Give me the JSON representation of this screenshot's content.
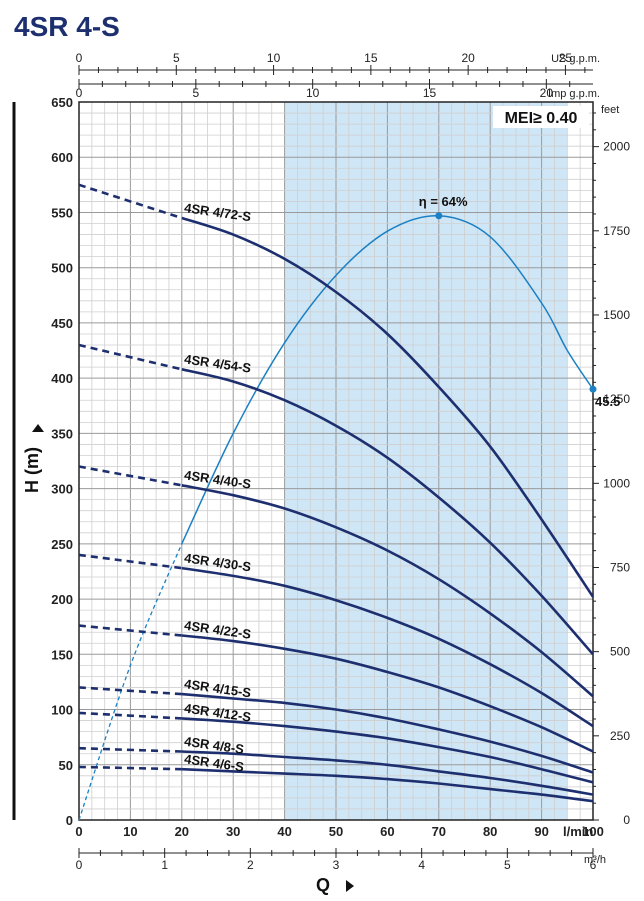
{
  "title": "4SR 4-S",
  "chart_data": {
    "type": "line",
    "x_axis": {
      "label": "Q",
      "unit": "l/min",
      "range": [
        0,
        100
      ],
      "ticks": [
        0,
        10,
        20,
        30,
        40,
        50,
        60,
        70,
        80,
        90,
        100
      ]
    },
    "y_axis": {
      "label": "H  (m)",
      "range": [
        0,
        650
      ],
      "ticks": [
        0,
        50,
        100,
        150,
        200,
        250,
        300,
        350,
        400,
        450,
        500,
        550,
        600,
        650
      ]
    },
    "secondary_axes": {
      "us_gpm": {
        "label": "US g.p.m.",
        "per_lmin": 0.26417,
        "ticks": [
          0,
          5,
          10,
          15,
          20,
          25
        ]
      },
      "imp_gpm": {
        "label": "Imp g.p.m.",
        "per_lmin": 0.21997,
        "ticks": [
          0,
          5,
          10,
          15,
          20
        ]
      },
      "m3h": {
        "label": "m³/h",
        "per_lmin": 0.06,
        "ticks": [
          0,
          1,
          2,
          3,
          4,
          5,
          6
        ]
      },
      "feet": {
        "label": "feet",
        "per_m": 3.28084,
        "ticks": [
          0,
          250,
          500,
          750,
          1000,
          1250,
          1500,
          1750,
          2000
        ]
      }
    },
    "operating_range": [
      40,
      95
    ],
    "mei_label": "MEI≥ 0.40",
    "series": [
      {
        "name": "4SR 4/72-S",
        "points": [
          [
            0,
            575
          ],
          [
            20,
            545
          ],
          [
            30,
            530
          ],
          [
            40,
            508
          ],
          [
            50,
            478
          ],
          [
            60,
            440
          ],
          [
            70,
            392
          ],
          [
            80,
            338
          ],
          [
            90,
            272
          ],
          [
            100,
            202
          ]
        ]
      },
      {
        "name": "4SR 4/54-S",
        "points": [
          [
            0,
            430
          ],
          [
            20,
            408
          ],
          [
            30,
            397
          ],
          [
            40,
            380
          ],
          [
            50,
            357
          ],
          [
            60,
            328
          ],
          [
            70,
            292
          ],
          [
            80,
            251
          ],
          [
            90,
            203
          ],
          [
            100,
            150
          ]
        ]
      },
      {
        "name": "4SR 4/40-S",
        "points": [
          [
            0,
            320
          ],
          [
            20,
            303
          ],
          [
            30,
            294
          ],
          [
            40,
            282
          ],
          [
            50,
            265
          ],
          [
            60,
            244
          ],
          [
            70,
            218
          ],
          [
            80,
            187
          ],
          [
            90,
            152
          ],
          [
            100,
            112
          ]
        ]
      },
      {
        "name": "4SR 4/30-S",
        "points": [
          [
            0,
            240
          ],
          [
            20,
            228
          ],
          [
            30,
            221
          ],
          [
            40,
            212
          ],
          [
            50,
            199
          ],
          [
            60,
            183
          ],
          [
            70,
            164
          ],
          [
            80,
            141
          ],
          [
            90,
            115
          ],
          [
            100,
            85
          ]
        ]
      },
      {
        "name": "4SR 4/22-S",
        "points": [
          [
            0,
            176
          ],
          [
            20,
            167
          ],
          [
            30,
            162
          ],
          [
            40,
            155
          ],
          [
            50,
            146
          ],
          [
            60,
            134
          ],
          [
            70,
            120
          ],
          [
            80,
            103
          ],
          [
            90,
            84
          ],
          [
            100,
            62
          ]
        ]
      },
      {
        "name": "4SR 4/15-S",
        "points": [
          [
            0,
            120
          ],
          [
            20,
            114
          ],
          [
            30,
            110
          ],
          [
            40,
            106
          ],
          [
            50,
            100
          ],
          [
            60,
            92
          ],
          [
            70,
            82
          ],
          [
            80,
            71
          ],
          [
            90,
            58
          ],
          [
            100,
            43
          ]
        ]
      },
      {
        "name": "4SR 4/12-S",
        "points": [
          [
            0,
            97
          ],
          [
            20,
            92
          ],
          [
            30,
            89
          ],
          [
            40,
            85
          ],
          [
            50,
            80
          ],
          [
            60,
            74
          ],
          [
            70,
            66
          ],
          [
            80,
            57
          ],
          [
            90,
            46
          ],
          [
            100,
            34
          ]
        ]
      },
      {
        "name": "4SR 4/8-S",
        "points": [
          [
            0,
            65
          ],
          [
            20,
            62
          ],
          [
            30,
            60
          ],
          [
            40,
            57
          ],
          [
            50,
            54
          ],
          [
            60,
            50
          ],
          [
            70,
            44
          ],
          [
            80,
            38
          ],
          [
            90,
            31
          ],
          [
            100,
            23
          ]
        ]
      },
      {
        "name": "4SR 4/6-S",
        "points": [
          [
            0,
            48
          ],
          [
            20,
            46
          ],
          [
            30,
            44
          ],
          [
            40,
            42
          ],
          [
            50,
            40
          ],
          [
            60,
            37
          ],
          [
            70,
            33
          ],
          [
            80,
            28
          ],
          [
            90,
            23
          ],
          [
            100,
            17
          ]
        ]
      }
    ],
    "efficiency_curve": {
      "label": "η = 64%",
      "end_label": "45.5",
      "peak": [
        70,
        547
      ],
      "end": [
        100,
        390
      ],
      "points": [
        [
          0,
          0
        ],
        [
          10,
          140
        ],
        [
          20,
          250
        ],
        [
          30,
          350
        ],
        [
          40,
          432
        ],
        [
          50,
          493
        ],
        [
          60,
          533
        ],
        [
          70,
          547
        ],
        [
          80,
          528
        ],
        [
          90,
          468
        ],
        [
          95,
          425
        ],
        [
          100,
          390
        ]
      ]
    }
  }
}
